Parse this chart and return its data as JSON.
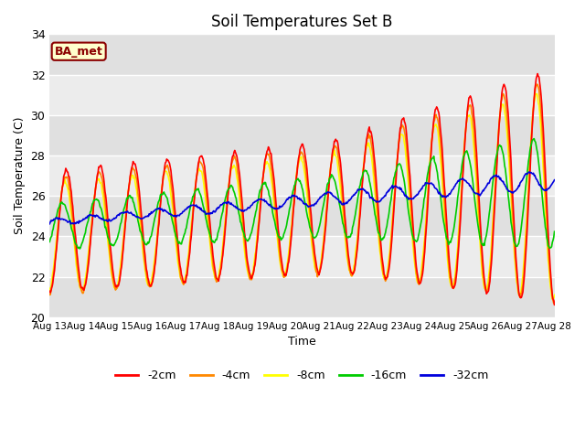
{
  "title": "Soil Temperatures Set B",
  "xlabel": "Time",
  "ylabel": "Soil Temperature (C)",
  "annotation": "BA_met",
  "ylim": [
    20,
    34
  ],
  "xlim": [
    0,
    360
  ],
  "legend_labels": [
    "-2cm",
    "-4cm",
    "-8cm",
    "-16cm",
    "-32cm"
  ],
  "legend_colors": [
    "#ff0000",
    "#ff8800",
    "#ffff00",
    "#00cc00",
    "#0000dd"
  ],
  "background_color": "#ffffff",
  "plot_bg_color": "#f0f0f0",
  "band_colors": [
    "#e8e8e8",
    "#d8d8d8"
  ],
  "grid_color": "#ffffff",
  "tick_labels": [
    "Aug 13",
    "Aug 14",
    "Aug 15",
    "Aug 16",
    "Aug 17",
    "Aug 18",
    "Aug 19",
    "Aug 20",
    "Aug 21",
    "Aug 22",
    "Aug 23",
    "Aug 24",
    "Aug 25",
    "Aug 26",
    "Aug 27",
    "Aug 28"
  ],
  "tick_positions": [
    0,
    24,
    48,
    72,
    96,
    120,
    144,
    168,
    192,
    216,
    240,
    264,
    288,
    312,
    336,
    360
  ],
  "yticks": [
    20,
    22,
    24,
    26,
    28,
    30,
    32,
    34
  ]
}
